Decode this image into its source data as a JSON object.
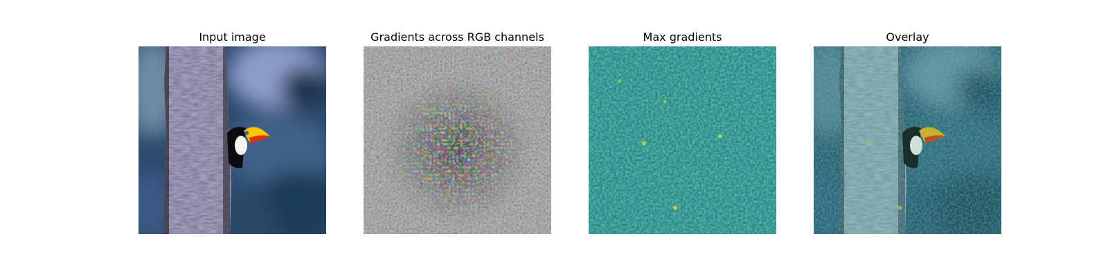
{
  "figure": {
    "panels": [
      {
        "title": "Input image"
      },
      {
        "title": "Gradients across RGB channels"
      },
      {
        "title": "Max gradients"
      },
      {
        "title": "Overlay"
      }
    ]
  },
  "colors": {
    "background": "#ffffff",
    "forest_dark": "#1f3550",
    "forest_blue": "#3a5a86",
    "forest_light": "#8ea0c8",
    "trunk": "#6e6a88",
    "toucan_beak_yellow": "#f5c800",
    "toucan_beak_red": "#e03010",
    "gradient_gray": "#8a8a8a",
    "viridis_base": "#2a8a86",
    "viridis_high": "#e8e830",
    "overlay_tint": "#2f7f88"
  }
}
